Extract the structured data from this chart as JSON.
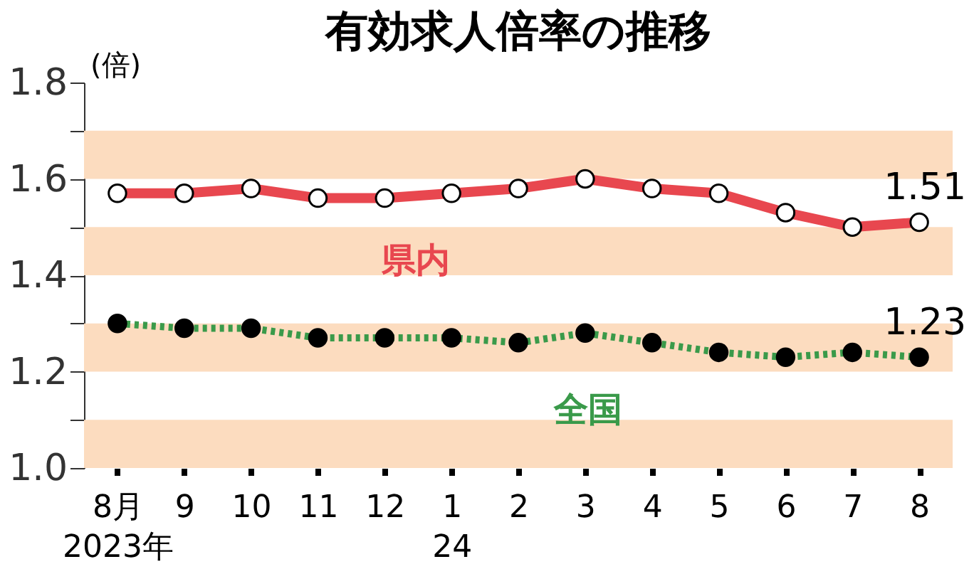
{
  "chart_data": {
    "type": "line",
    "title": "有効求人倍率の推移",
    "ylabel": "(倍)",
    "categories": [
      "8月\n2023年",
      "9",
      "10",
      "11",
      "12",
      "1\n24",
      "2",
      "3",
      "4",
      "5",
      "6",
      "7",
      "8"
    ],
    "series": [
      {
        "name": "県内",
        "color": "#e8474f",
        "line_style": "solid",
        "marker": "circle",
        "values": [
          1.57,
          1.57,
          1.58,
          1.56,
          1.56,
          1.57,
          1.58,
          1.6,
          1.58,
          1.57,
          1.53,
          1.5,
          1.51
        ],
        "value_labels": [
          null,
          null,
          null,
          null,
          null,
          null,
          null,
          null,
          null,
          null,
          null,
          null,
          "1.51"
        ]
      },
      {
        "name": "全国",
        "color": "#3a9a4a",
        "line_style": "dotted",
        "marker": "circle",
        "values": [
          1.3,
          1.29,
          1.29,
          1.27,
          1.27,
          1.27,
          1.26,
          1.28,
          1.26,
          1.24,
          1.23,
          1.24,
          1.23
        ],
        "value_labels": [
          null,
          null,
          null,
          null,
          null,
          null,
          null,
          null,
          null,
          null,
          null,
          null,
          "1.23"
        ]
      }
    ],
    "ylim": [
      1.0,
      1.8
    ],
    "yticks": [
      {
        "value": 1.0,
        "label": "1.0"
      },
      {
        "value": 1.1,
        "label": null
      },
      1.2,
      {
        "value": 1.3,
        "label": null
      },
      1.4,
      {
        "value": 1.5,
        "label": null
      },
      1.6,
      {
        "value": 1.7,
        "label": null
      },
      1.8
    ],
    "bands": [
      {
        "axis": "y",
        "from": 1.0,
        "to": 1.1,
        "color": "#fcdcbf"
      },
      {
        "axis": "y",
        "from": 1.2,
        "to": 1.3,
        "color": "#fcdcbf"
      },
      {
        "axis": "y",
        "from": 1.4,
        "to": 1.5,
        "color": "#fcdcbf"
      },
      {
        "axis": "y",
        "from": 1.6,
        "to": 1.7,
        "color": "#fcdcbf"
      }
    ],
    "grid": false,
    "legend": false
  }
}
